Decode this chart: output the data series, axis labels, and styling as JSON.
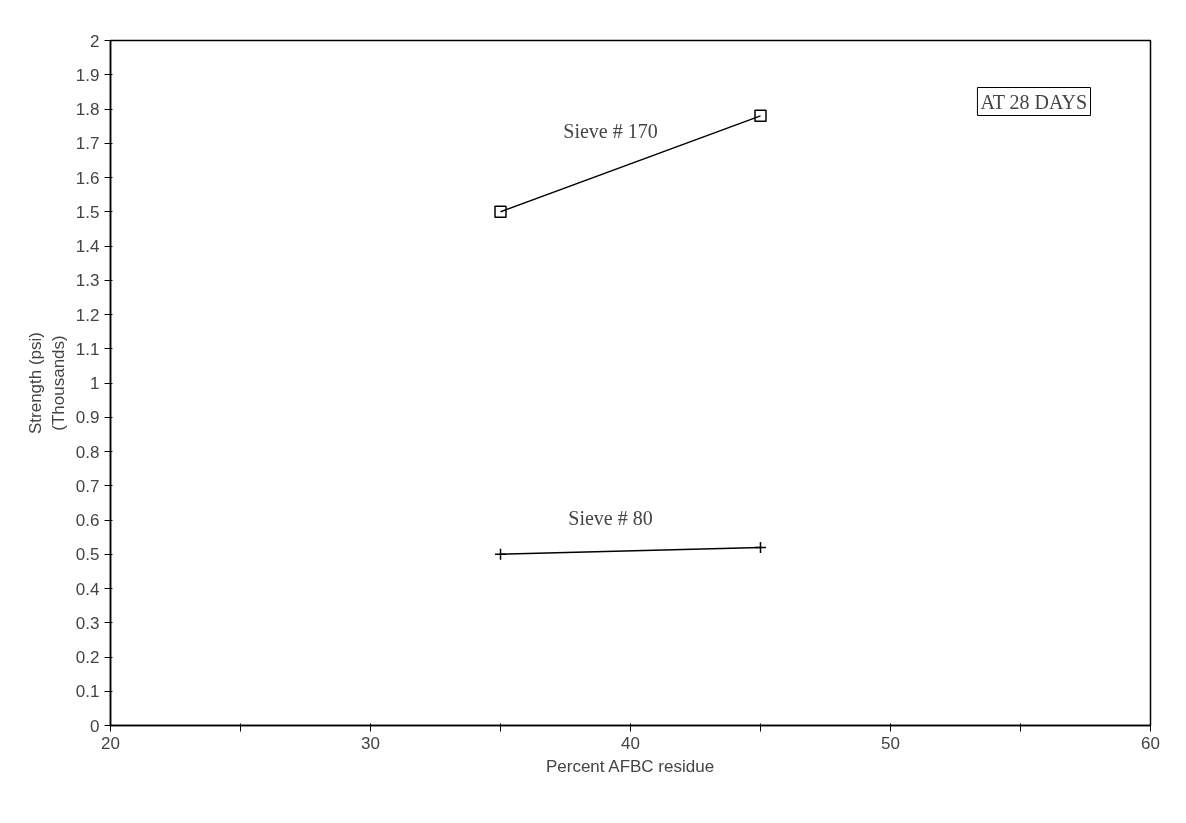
{
  "chart_data": {
    "type": "line",
    "xlabel": "Percent AFBC residue",
    "ylabel": "Strength (psi)\n(Thousands)",
    "x": [
      35,
      45
    ],
    "series": [
      {
        "name": "Sieve # 170",
        "color": "#000000",
        "values": [
          1.5,
          1.78
        ],
        "marker": "square"
      },
      {
        "name": "Sieve # 80",
        "color": "#000000",
        "values": [
          0.5,
          0.52
        ],
        "marker": "cross"
      }
    ],
    "xlim": [
      20,
      60
    ],
    "ylim": [
      0,
      2
    ],
    "xticks": [
      20,
      {
        "value": 25,
        "label": null
      },
      30,
      {
        "value": 35,
        "label": null
      },
      40,
      {
        "value": 45,
        "label": null
      },
      50,
      {
        "value": 55,
        "label": null
      },
      60
    ],
    "yticks": [
      0,
      0.1,
      0.2,
      0.3,
      0.4,
      0.5,
      0.6,
      0.7,
      0.8,
      0.9,
      1,
      1.1,
      1.2,
      1.3,
      1.4,
      1.5,
      1.6,
      1.7,
      1.8,
      1.9,
      2
    ],
    "annotations": [
      "AT 28 DAYS"
    ],
    "grid": false,
    "line_style": "solid"
  }
}
